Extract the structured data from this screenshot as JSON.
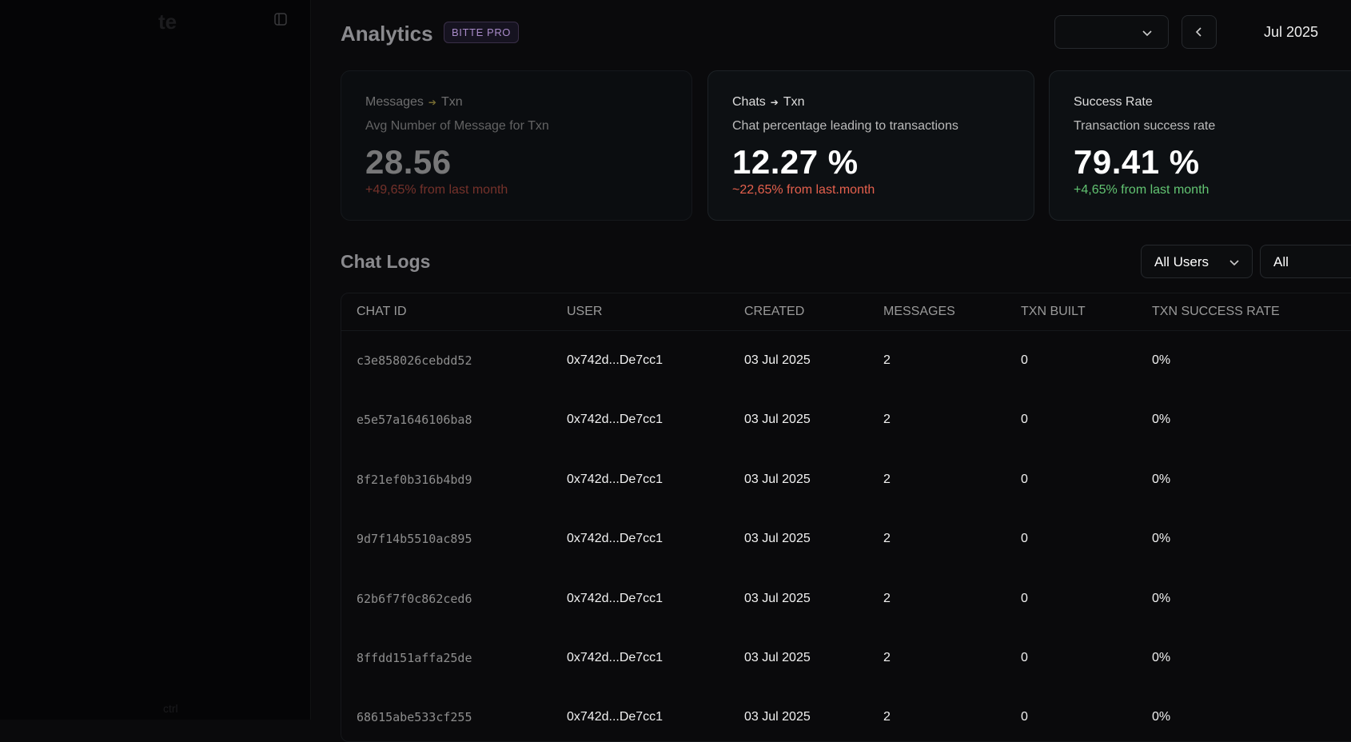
{
  "sidebar": {
    "brand": "te",
    "footer": "ctrl"
  },
  "header": {
    "title": "Analytics",
    "badge": "BITTE PRO",
    "period": "Jul 2025"
  },
  "cards": [
    {
      "title_from": "Messages",
      "title_to": "Txn",
      "subtitle": "Avg Number of Message for Txn",
      "value": "28.56",
      "change": "+49,65% from last month"
    },
    {
      "title_from": "Chats",
      "title_to": "Txn",
      "subtitle": "Chat percentage leading to transactions",
      "value": "12.27 %",
      "change": "~22,65% from last.month"
    },
    {
      "title": "Success Rate",
      "subtitle": "Transaction success rate",
      "value": "79.41 %",
      "change": "+4,65% from last month"
    }
  ],
  "chat_logs": {
    "title": "Chat Logs",
    "filters": [
      "All Users",
      "All"
    ]
  },
  "table": {
    "columns": [
      "CHAT ID",
      "USER",
      "CREATED",
      "MESSAGES",
      "TXN BUILT",
      "TXN SUCCESS RATE"
    ],
    "rows": [
      [
        "c3e858026cebdd52",
        "0x742d...De7cc1",
        "03 Jul 2025",
        "2",
        "0",
        "0%"
      ],
      [
        "e5e57a1646106ba8",
        "0x742d...De7cc1",
        "03 Jul 2025",
        "2",
        "0",
        "0%"
      ],
      [
        "8f21ef0b316b4bd9",
        "0x742d...De7cc1",
        "03 Jul 2025",
        "2",
        "0",
        "0%"
      ],
      [
        "9d7f14b5510ac895",
        "0x742d...De7cc1",
        "03 Jul 2025",
        "2",
        "0",
        "0%"
      ],
      [
        "62b6f7f0c862ced6",
        "0x742d...De7cc1",
        "03 Jul 2025",
        "2",
        "0",
        "0%"
      ],
      [
        "8ffdd151affa25de",
        "0x742d...De7cc1",
        "03 Jul 2025",
        "2",
        "0",
        "0%"
      ],
      [
        "68615abe533cf255",
        "0x742d...De7cc1",
        "03 Jul 2025",
        "2",
        "0",
        "0%"
      ]
    ]
  }
}
